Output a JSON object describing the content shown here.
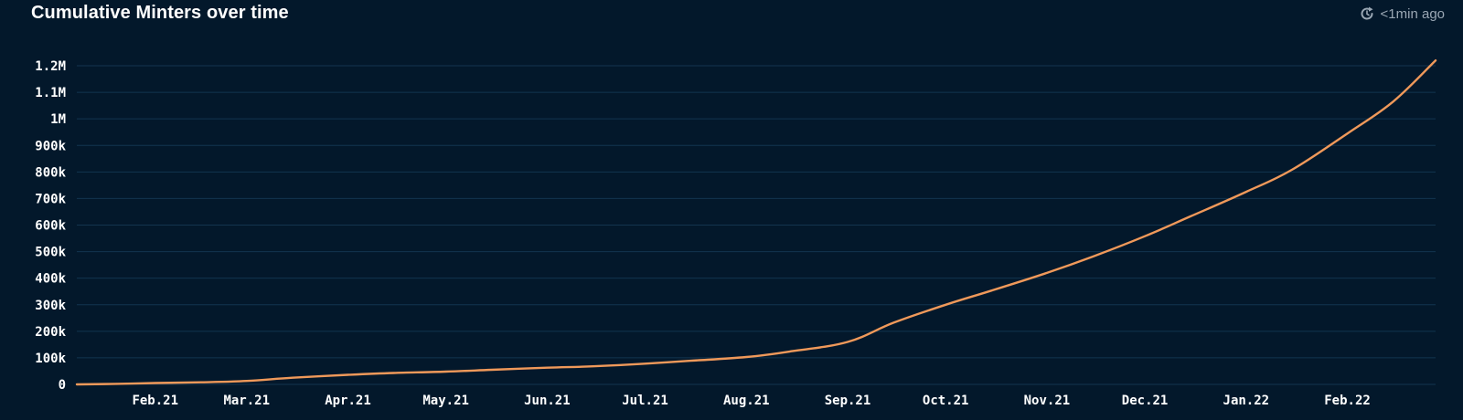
{
  "header": {
    "title": "Cumulative Minters over time",
    "refresh_label": "<1min ago",
    "refresh_icon": "refresh-icon"
  },
  "colors": {
    "background": "#03182b",
    "grid": "#13344f",
    "line": "#f0995a",
    "text": "#ffffff",
    "muted": "#9aa7b4"
  },
  "chart_data": {
    "type": "line",
    "title": "Cumulative Minters over time",
    "xlabel": "",
    "ylabel": "",
    "ylim": [
      0,
      1200000
    ],
    "grid": true,
    "legend": "none",
    "x_tick_labels": [
      "Feb.21",
      "Mar.21",
      "Apr.21",
      "May.21",
      "Jun.21",
      "Jul.21",
      "Aug.21",
      "Sep.21",
      "Oct.21",
      "Nov.21",
      "Dec.21",
      "Jan.22",
      "Feb.22"
    ],
    "y_ticks": [
      0,
      100000,
      200000,
      300000,
      400000,
      500000,
      600000,
      700000,
      800000,
      900000,
      1000000,
      1100000,
      1200000
    ],
    "y_tick_labels": [
      "0",
      "100k",
      "200k",
      "300k",
      "400k",
      "500k",
      "600k",
      "700k",
      "800k",
      "900k",
      "1M",
      "1.1M",
      "1.2M"
    ],
    "series": [
      {
        "name": "",
        "x": [
          "2021-01-08",
          "2021-01-20",
          "2021-02-01",
          "2021-02-15",
          "2021-03-01",
          "2021-03-15",
          "2021-04-01",
          "2021-04-15",
          "2021-05-01",
          "2021-05-15",
          "2021-06-01",
          "2021-06-15",
          "2021-07-01",
          "2021-07-15",
          "2021-08-01",
          "2021-08-15",
          "2021-09-01",
          "2021-09-15",
          "2021-10-01",
          "2021-10-15",
          "2021-11-01",
          "2021-11-15",
          "2021-12-01",
          "2021-12-15",
          "2022-01-01",
          "2022-01-15",
          "2022-02-01",
          "2022-02-15",
          "2022-02-28"
        ],
        "y": [
          0,
          2000,
          5000,
          8000,
          13000,
          25000,
          36000,
          43000,
          48000,
          55000,
          63000,
          68000,
          78000,
          89000,
          103000,
          125000,
          160000,
          232000,
          300000,
          353000,
          420000,
          481000,
          558000,
          633000,
          725000,
          808000,
          945000,
          1065000,
          1220000
        ]
      }
    ]
  }
}
